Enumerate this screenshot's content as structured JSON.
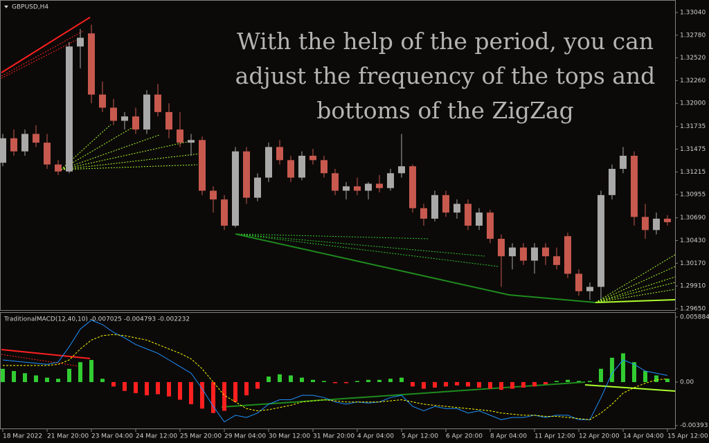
{
  "chart_data": [
    {
      "type": "candlestick",
      "title": "GBPUSD,H4",
      "annotation": [
        "With the help of the period, you can",
        "adjust the frequency of the tops and",
        "bottoms of the ZigZag"
      ],
      "up_color": "#a9a9a9",
      "down_color": "#c8594f",
      "xlim": [
        -0.25,
        60.69
      ],
      "ylim": [
        1.29634,
        1.33182
      ],
      "yticks": [
        {
          "value": 1.3304,
          "label": "1.33040"
        },
        {
          "value": 1.3278,
          "label": "1.32780"
        },
        {
          "value": 1.3252,
          "label": "1.32520"
        },
        {
          "value": 1.3226,
          "label": "1.32260"
        },
        {
          "value": 1.32,
          "label": "1.32000"
        },
        {
          "value": 1.31735,
          "label": "1.31735"
        },
        {
          "value": 1.31475,
          "label": "1.31475"
        },
        {
          "value": 1.31215,
          "label": "1.31215"
        },
        {
          "value": 1.30955,
          "label": "1.30955"
        },
        {
          "value": 1.3069,
          "label": "1.30690"
        },
        {
          "value": 1.3043,
          "label": "1.30430"
        },
        {
          "value": 1.3017,
          "label": "1.30170"
        },
        {
          "value": 1.2991,
          "label": "1.29910"
        },
        {
          "value": 1.2965,
          "label": "1.29650"
        }
      ],
      "open": [
        1.3132,
        1.316,
        1.3145,
        1.3165,
        1.3155,
        1.313,
        1.3122,
        1.3265,
        1.328,
        1.321,
        1.3195,
        1.318,
        1.3185,
        1.317,
        1.321,
        1.319,
        1.317,
        1.3155,
        1.3158,
        1.31,
        1.309,
        1.306,
        1.3145,
        1.3092,
        1.3115,
        1.315,
        1.3135,
        1.3115,
        1.314,
        1.3135,
        1.312,
        1.31,
        1.3105,
        1.31,
        1.3108,
        1.3103,
        1.312,
        1.3128,
        1.308,
        1.3068,
        1.3095,
        1.3075,
        1.3085,
        1.306,
        1.3075,
        1.3045,
        1.3025,
        1.3035,
        1.302,
        1.3035,
        1.3025,
        1.3048,
        1.3005,
        1.2985,
        1.299,
        1.3095,
        1.3125,
        1.314,
        1.307,
        1.3055,
        1.3068
      ],
      "high": [
        1.3165,
        1.317,
        1.317,
        1.3175,
        1.3165,
        1.3135,
        1.327,
        1.3285,
        1.329,
        1.3225,
        1.3205,
        1.319,
        1.3195,
        1.3215,
        1.3222,
        1.32,
        1.319,
        1.3165,
        1.3162,
        1.3105,
        1.3095,
        1.315,
        1.315,
        1.312,
        1.3155,
        1.3158,
        1.314,
        1.3145,
        1.3148,
        1.314,
        1.3125,
        1.311,
        1.3115,
        1.311,
        1.3118,
        1.3125,
        1.3165,
        1.313,
        1.3085,
        1.31,
        1.31,
        1.309,
        1.309,
        1.308,
        1.3078,
        1.305,
        1.304,
        1.304,
        1.304,
        1.304,
        1.3035,
        1.3052,
        1.301,
        1.2995,
        1.31,
        1.313,
        1.315,
        1.3145,
        1.3085,
        1.3075,
        1.3072
      ],
      "low": [
        1.3128,
        1.314,
        1.314,
        1.315,
        1.3125,
        1.3118,
        1.312,
        1.324,
        1.32,
        1.319,
        1.3175,
        1.317,
        1.3165,
        1.3165,
        1.3185,
        1.316,
        1.315,
        1.314,
        1.3095,
        1.3075,
        1.3055,
        1.3058,
        1.3085,
        1.3088,
        1.311,
        1.313,
        1.311,
        1.3112,
        1.313,
        1.3115,
        1.3095,
        1.309,
        1.3095,
        1.309,
        1.3098,
        1.31,
        1.3115,
        1.3075,
        1.306,
        1.3065,
        1.307,
        1.3068,
        1.3055,
        1.3055,
        1.304,
        1.299,
        1.301,
        1.3015,
        1.3005,
        1.3015,
        1.301,
        1.3,
        1.298,
        1.2975,
        1.2975,
        1.309,
        1.312,
        1.306,
        1.3045,
        1.305,
        1.306
      ],
      "close": [
        1.316,
        1.3145,
        1.3165,
        1.3155,
        1.313,
        1.3122,
        1.3265,
        1.3275,
        1.321,
        1.3195,
        1.318,
        1.3185,
        1.317,
        1.321,
        1.319,
        1.317,
        1.3155,
        1.3158,
        1.31,
        1.309,
        1.306,
        1.3145,
        1.3092,
        1.3115,
        1.315,
        1.3135,
        1.3115,
        1.314,
        1.3135,
        1.312,
        1.31,
        1.3105,
        1.31,
        1.3108,
        1.3103,
        1.312,
        1.3128,
        1.308,
        1.3068,
        1.3095,
        1.3075,
        1.3085,
        1.306,
        1.3075,
        1.3045,
        1.3025,
        1.3035,
        1.302,
        1.3035,
        1.3025,
        1.3015,
        1.3005,
        1.2985,
        1.299,
        1.3095,
        1.3125,
        1.314,
        1.307,
        1.3055,
        1.3068,
        1.3064
      ]
    },
    {
      "type": "macd",
      "title": "TraditionalMACD(12,40,10) -0.007025 -0.004793 -0.002232",
      "xlim": [
        -0.25,
        60.69
      ],
      "ylim": [
        -0.00426,
        0.00626
      ],
      "yticks": [
        0.005884,
        {
          "value": 0,
          "label": "0.00"
        },
        -0.00393
      ],
      "xticks": [
        {
          "value": 0,
          "label": "18 Mar 2022"
        },
        {
          "value": 4,
          "label": "21 Mar 20:00"
        },
        {
          "value": 8,
          "label": "23 Mar 04:00"
        },
        {
          "value": 12,
          "label": "24 Mar 12:00"
        },
        {
          "value": 16,
          "label": "25 Mar 20:00"
        },
        {
          "value": 20,
          "label": "29 Mar 04:00"
        },
        {
          "value": 24,
          "label": "30 Mar 12:00"
        },
        {
          "value": 28,
          "label": "31 Mar 20:00"
        },
        {
          "value": 32,
          "label": "4 Apr 04:00"
        },
        {
          "value": 36,
          "label": "5 Apr 12:00"
        },
        {
          "value": 40,
          "label": "6 Apr 20:00"
        },
        {
          "value": 44,
          "label": "8 Apr 04:00"
        },
        {
          "value": 48,
          "label": "11 Apr 12:00"
        },
        {
          "value": 52,
          "label": "12 Apr 20:00"
        },
        {
          "value": 56,
          "label": "14 Apr 04:00"
        },
        {
          "value": 60,
          "label": "15 Apr 12:00"
        }
      ],
      "series": [
        {
          "up_color": "#32cd32",
          "down_color": "#ff2020",
          "values": [
            0.0012,
            0.001,
            0.0008,
            0.0006,
            0.0004,
            0.0003,
            0.0012,
            0.0018,
            0.002,
            0.0003,
            -0.0004,
            -0.0008,
            -0.001,
            -0.0012,
            -0.0011,
            -0.0013,
            -0.0016,
            -0.002,
            -0.0024,
            -0.0028,
            -0.0026,
            -0.0018,
            -0.0012,
            -0.0006,
            0.0005,
            0.0007,
            0.0006,
            0.0004,
            0.0002,
            0.0001,
            -0.0001,
            -0.0001,
            0.0001,
            0.0002,
            0.0002,
            0.0003,
            0.0004,
            -0.0004,
            -0.0006,
            -0.0005,
            -0.0004,
            -0.0003,
            -0.0004,
            -0.0005,
            -0.0006,
            -0.0007,
            -0.0006,
            -0.0005,
            -0.0004,
            -0.0002,
            0.0001,
            0.0002,
            0.0001,
            0.0001,
            0.0012,
            0.0022,
            0.0026,
            0.0018,
            0.001,
            0.0006,
            0.0003
          ]
        },
        {
          "color": "#1e90ff",
          "values": [
            0.002,
            0.0019,
            0.0018,
            0.0017,
            0.0016,
            0.0018,
            0.0032,
            0.0048,
            0.0056,
            0.0052,
            0.0045,
            0.004,
            0.0034,
            0.003,
            0.0026,
            0.002,
            0.0014,
            0.0008,
            -0.0006,
            -0.0022,
            -0.0036,
            -0.003,
            -0.0032,
            -0.0028,
            -0.002,
            -0.0016,
            -0.0016,
            -0.0012,
            -0.0012,
            -0.0014,
            -0.0018,
            -0.002,
            -0.0018,
            -0.0019,
            -0.0018,
            -0.0014,
            -0.0012,
            -0.0022,
            -0.0026,
            -0.0022,
            -0.0024,
            -0.0024,
            -0.0028,
            -0.0026,
            -0.003,
            -0.0034,
            -0.0032,
            -0.0032,
            -0.003,
            -0.0032,
            -0.003,
            -0.003,
            -0.0034,
            -0.0034,
            -0.0014,
            0.0008,
            0.002,
            0.0016,
            0.001,
            0.0008,
            0.0006
          ]
        },
        {
          "color": "#ffff00",
          "dashed": true,
          "values": [
            0.0015,
            0.0015,
            0.0015,
            0.0015,
            0.0015,
            0.0016,
            0.002,
            0.003,
            0.0038,
            0.0042,
            0.0043,
            0.0042,
            0.004,
            0.0038,
            0.0034,
            0.003,
            0.0026,
            0.0021,
            0.0012,
            0,
            -0.0012,
            -0.0018,
            -0.0024,
            -0.0026,
            -0.0025,
            -0.0023,
            -0.0021,
            -0.0018,
            -0.0017,
            -0.0016,
            -0.0017,
            -0.0018,
            -0.0018,
            -0.0018,
            -0.0018,
            -0.0017,
            -0.0016,
            -0.0018,
            -0.002,
            -0.0021,
            -0.0022,
            -0.0023,
            -0.0024,
            -0.0025,
            -0.0026,
            -0.0028,
            -0.0029,
            -0.003,
            -0.003,
            -0.0031,
            -0.0031,
            -0.0032,
            -0.0033,
            -0.0034,
            -0.0028,
            -0.002,
            -0.001,
            -0.0005,
            -0.0001,
            0.0002,
            0.0003
          ]
        }
      ]
    }
  ]
}
